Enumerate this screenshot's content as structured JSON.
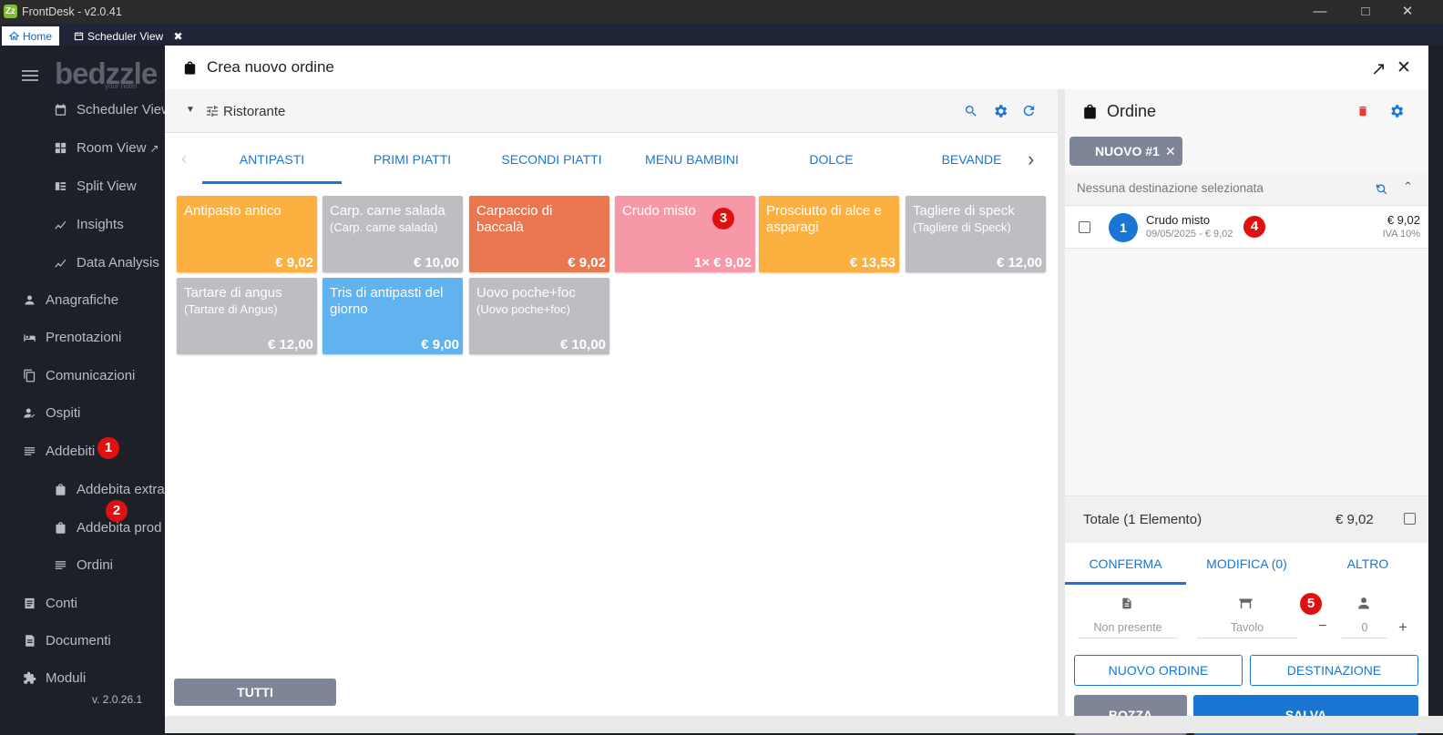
{
  "window": {
    "title": "FrontDesk - v2.0.41",
    "logo": "Zz"
  },
  "tabs": [
    {
      "label": "Home",
      "icon": "home-icon"
    },
    {
      "label": "Scheduler View",
      "icon": "calendar-icon"
    }
  ],
  "sidebar": {
    "brand": "bedzzle",
    "brand_tagline": "your hotel",
    "items": [
      {
        "label": "Scheduler View",
        "icon": "calendar-icon"
      },
      {
        "label": "Room View",
        "icon": "grid-icon"
      },
      {
        "label": "Split View",
        "icon": "split-icon"
      },
      {
        "label": "Insights",
        "icon": "chart-line-icon"
      },
      {
        "label": "Data Analysis",
        "icon": "chart-line-icon"
      },
      {
        "label": "Anagrafiche",
        "icon": "person-icon"
      },
      {
        "label": "Prenotazioni",
        "icon": "bed-icon"
      },
      {
        "label": "Comunicazioni",
        "icon": "copy-icon"
      },
      {
        "label": "Ospiti",
        "icon": "guest-icon"
      },
      {
        "label": "Addebiti",
        "icon": "list-icon"
      },
      {
        "label": "Addebita extra",
        "icon": "bag-icon"
      },
      {
        "label": "Addebita prod",
        "icon": "bag-icon"
      },
      {
        "label": "Ordini",
        "icon": "list-icon"
      },
      {
        "label": "Conti",
        "icon": "receipt-icon"
      },
      {
        "label": "Documenti",
        "icon": "document-icon"
      },
      {
        "label": "Moduli",
        "icon": "puzzle-icon"
      }
    ],
    "version": "v. 2.0.26.1"
  },
  "badges": [
    "1",
    "2",
    "3",
    "4",
    "5"
  ],
  "dialog": {
    "title": "Crea nuovo ordine",
    "filter_label": "Ristorante",
    "categories": [
      "ANTIPASTI",
      "PRIMI PIATTI",
      "SECONDI PIATTI",
      "MENU BAMBINI",
      "DOLCE",
      "BEVANDE"
    ],
    "active_category": "ANTIPASTI",
    "products": [
      {
        "name": "Antipasto antico",
        "sub": "",
        "price": "€ 9,02",
        "color": "#fbb040"
      },
      {
        "name": "Carp. carne salada",
        "sub": "(Carp. carne salada)",
        "price": "€ 10,00",
        "color": "#bdbec2"
      },
      {
        "name": "Carpaccio di baccalà",
        "sub": "",
        "price": "€ 9,02",
        "color": "#ea7750"
      },
      {
        "name": "Crudo misto",
        "sub": "",
        "price": "1× € 9,02",
        "color": "#f798a8"
      },
      {
        "name": "Prosciutto di alce e asparagi",
        "sub": "",
        "price": "€ 13,53",
        "color": "#fbb040"
      },
      {
        "name": "Tagliere di speck",
        "sub": "(Tagliere di Speck)",
        "price": "€ 12,00",
        "color": "#bdbec2"
      },
      {
        "name": "Tartare di angus",
        "sub": "(Tartare di Angus)",
        "price": "€ 12,00",
        "color": "#bdbec2"
      },
      {
        "name": "Tris di antipasti del giorno",
        "sub": "",
        "price": "€ 9,00",
        "color": "#61b3f0"
      },
      {
        "name": "Uovo poche+foc",
        "sub": "(Uovo poche+foc)",
        "price": "€ 10,00",
        "color": "#bdbec2"
      }
    ],
    "all_button": "TUTTI"
  },
  "order": {
    "title": "Ordine",
    "chip": "NUOVO #1",
    "destination": "Nessuna destinazione selezionata",
    "items": [
      {
        "qty": "1",
        "name": "Crudo misto",
        "meta": "09/05/2025 - € 9,02",
        "price": "€ 9,02",
        "vat": "IVA 10%"
      }
    ],
    "total_label": "Totale (1 Elemento)",
    "total_value": "€ 9,02",
    "tabs": [
      "CONFERMA",
      "MODIFICA (0)",
      "ALTRO"
    ],
    "active_tab": "CONFERMA",
    "fields": {
      "document": "Non presente",
      "table": "Tavolo",
      "covers": "0"
    },
    "buttons": {
      "new_order": "NUOVO ORDINE",
      "destination": "DESTINAZIONE",
      "draft": "BOZZA",
      "save": "SALVA"
    }
  }
}
